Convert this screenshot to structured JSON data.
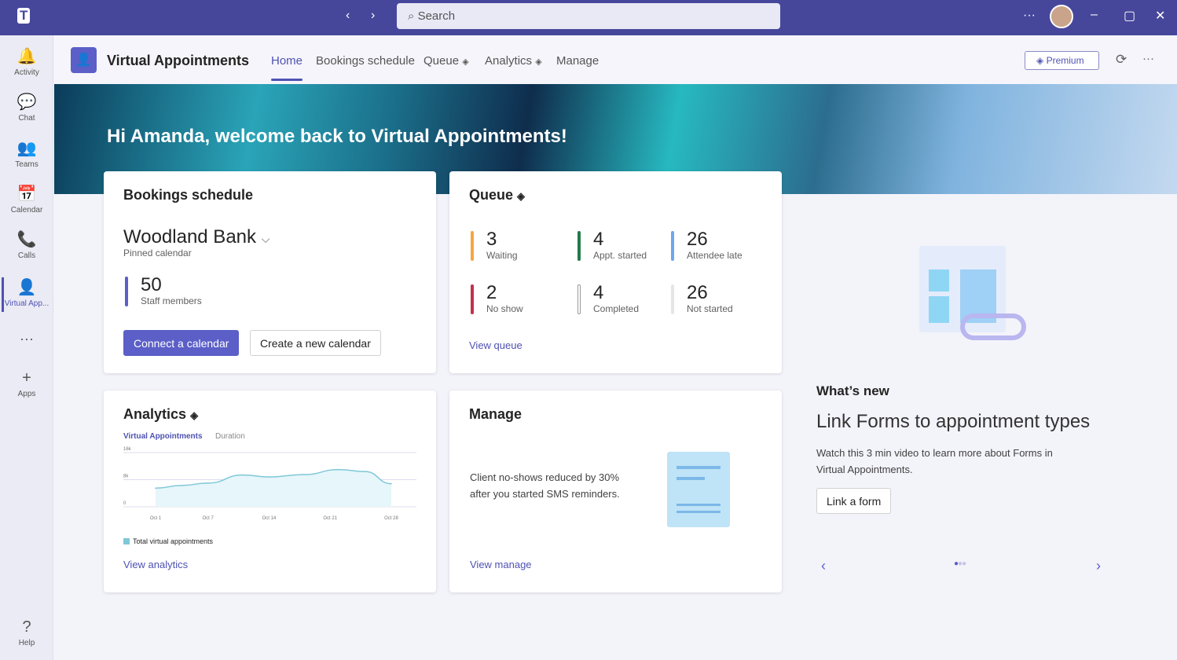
{
  "topbar": {
    "search_placeholder": "Search",
    "more": "···"
  },
  "sidebar": {
    "items": [
      {
        "label": "Activity",
        "icon": "🔔"
      },
      {
        "label": "Chat",
        "icon": "💬"
      },
      {
        "label": "Teams",
        "icon": "👥"
      },
      {
        "label": "Calendar",
        "icon": "📅"
      },
      {
        "label": "Calls",
        "icon": "📞"
      },
      {
        "label": "Virtual App...",
        "icon": "👤"
      },
      {
        "label": "Apps",
        "icon": "+"
      },
      {
        "label": "Help",
        "icon": "?"
      }
    ]
  },
  "app": {
    "title": "Virtual Appointments",
    "tabs": [
      "Home",
      "Bookings schedule",
      "Queue",
      "Analytics",
      "Manage"
    ],
    "premium": "Premium"
  },
  "banner": {
    "greeting": "Hi Amanda, welcome back to Virtual Appointments!"
  },
  "bookings": {
    "title": "Bookings schedule",
    "calendar": "Woodland Bank",
    "calendar_sub": "Pinned calendar",
    "staff_count": "50",
    "staff_label": "Staff members",
    "connect": "Connect a calendar",
    "create": "Create a new calendar",
    "accent": "#5b5fc7"
  },
  "queue": {
    "title": "Queue",
    "stats": [
      {
        "num": "3",
        "label": "Waiting",
        "color": "#f7a541"
      },
      {
        "num": "4",
        "label": "Appt. started",
        "color": "#237b4b"
      },
      {
        "num": "26",
        "label": "Attendee late",
        "color": "#6ea6f0"
      },
      {
        "num": "2",
        "label": "No show",
        "color": "#c4314b"
      },
      {
        "num": "4",
        "label": "Completed",
        "color": "#ffffff"
      },
      {
        "num": "26",
        "label": "Not started",
        "color": "#e6e6e6"
      }
    ],
    "link": "View queue"
  },
  "analytics": {
    "title": "Analytics",
    "tabs": [
      "Virtual Appointments",
      "Duration"
    ],
    "link": "View analytics"
  },
  "chart_data": {
    "type": "line",
    "yticks": [
      "16k",
      "8k",
      "0"
    ],
    "ylim": [
      0,
      16000
    ],
    "xticks": [
      "Oct 1",
      "Oct 7",
      "Oct 14",
      "Oct 21",
      "Oct 28"
    ],
    "series": [
      {
        "name": "Total virtual appointments",
        "color": "#7fc8d8",
        "x": [
          "Oct 1",
          "Oct 4",
          "Oct 7",
          "Oct 11",
          "Oct 14",
          "Oct 18",
          "Oct 22",
          "Oct 25",
          "Oct 28"
        ],
        "y": [
          5500,
          6300,
          7000,
          9400,
          8800,
          9500,
          11000,
          10400,
          6800
        ]
      }
    ],
    "legend": "bottom-left",
    "grid": true
  },
  "manage": {
    "title": "Manage",
    "text1": "Client no-shows reduced by 30%",
    "text2": "after you started SMS reminders.",
    "link": "View manage"
  },
  "whatsnew": {
    "heading": "What’s new",
    "title": "Link Forms to appointment types",
    "desc1": "Watch this 3 min video to learn more about Forms in",
    "desc2": "Virtual Appointments.",
    "button": "Link a form",
    "page": 1,
    "pages": 3
  }
}
